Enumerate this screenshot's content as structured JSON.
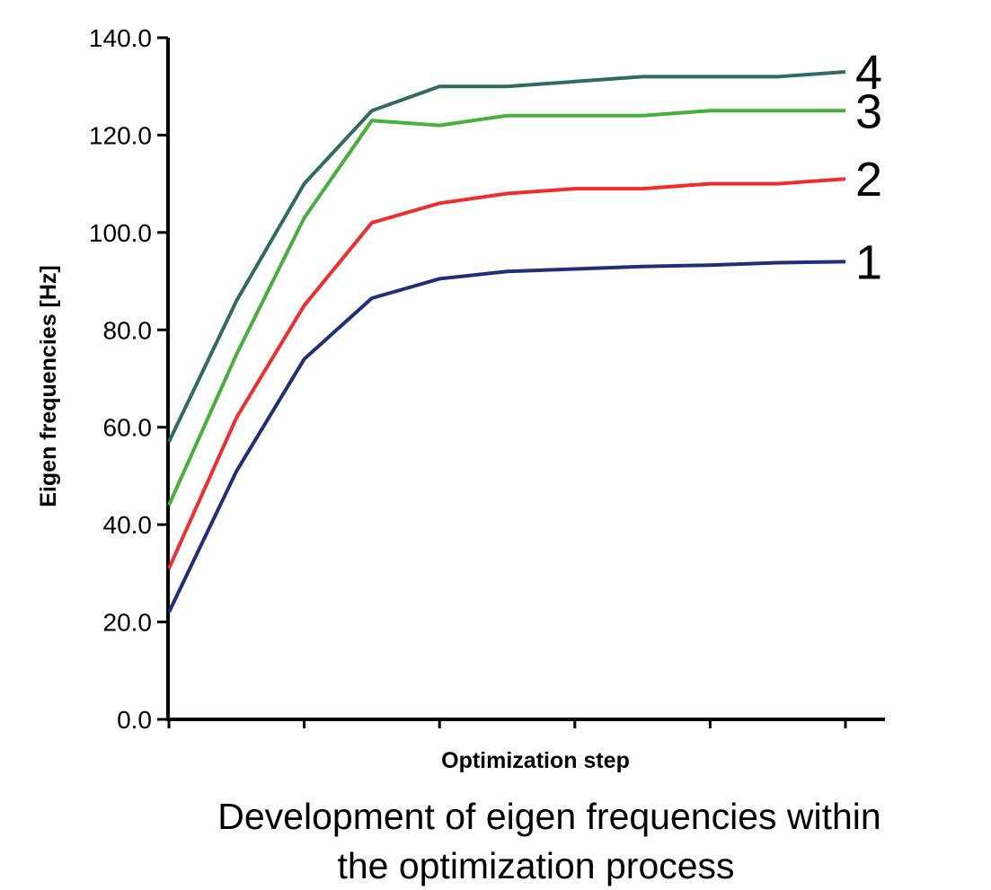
{
  "chart_data": {
    "type": "line",
    "xlabel": "Optimization step",
    "ylabel": "Eigen frequencies [Hz]",
    "ylim": [
      0,
      140
    ],
    "yticks": [
      "0.0",
      "20.0",
      "40.0",
      "60.0",
      "80.0",
      "100.0",
      "120.0",
      "140.0"
    ],
    "y_tick_values": [
      0,
      20,
      40,
      60,
      80,
      100,
      120,
      140
    ],
    "x_tick_values": [
      0,
      2,
      4,
      6,
      8,
      10
    ],
    "xlim": [
      0,
      10.5
    ],
    "x": [
      0,
      1,
      2,
      3,
      4,
      5,
      6,
      7,
      8,
      9,
      10
    ],
    "grid": false,
    "series": [
      {
        "name": "1",
        "color": "#1f2f7a",
        "values": [
          22,
          51,
          74,
          86.5,
          90.5,
          92,
          92.5,
          93,
          93.3,
          93.8,
          94
        ]
      },
      {
        "name": "2",
        "color": "#f22b2b",
        "values": [
          31,
          62,
          85,
          102,
          106,
          108,
          109,
          109,
          110,
          110,
          111
        ]
      },
      {
        "name": "3",
        "color": "#45b03a",
        "values": [
          44,
          75,
          103,
          123,
          122,
          124,
          124,
          124,
          125,
          125,
          125
        ]
      },
      {
        "name": "4",
        "color": "#2f6b62",
        "values": [
          57,
          86,
          110,
          125,
          130,
          130,
          131,
          132,
          132,
          132,
          133
        ]
      }
    ]
  },
  "caption": {
    "line1": "Development of eigen frequencies within",
    "line2": "the optimization process"
  }
}
